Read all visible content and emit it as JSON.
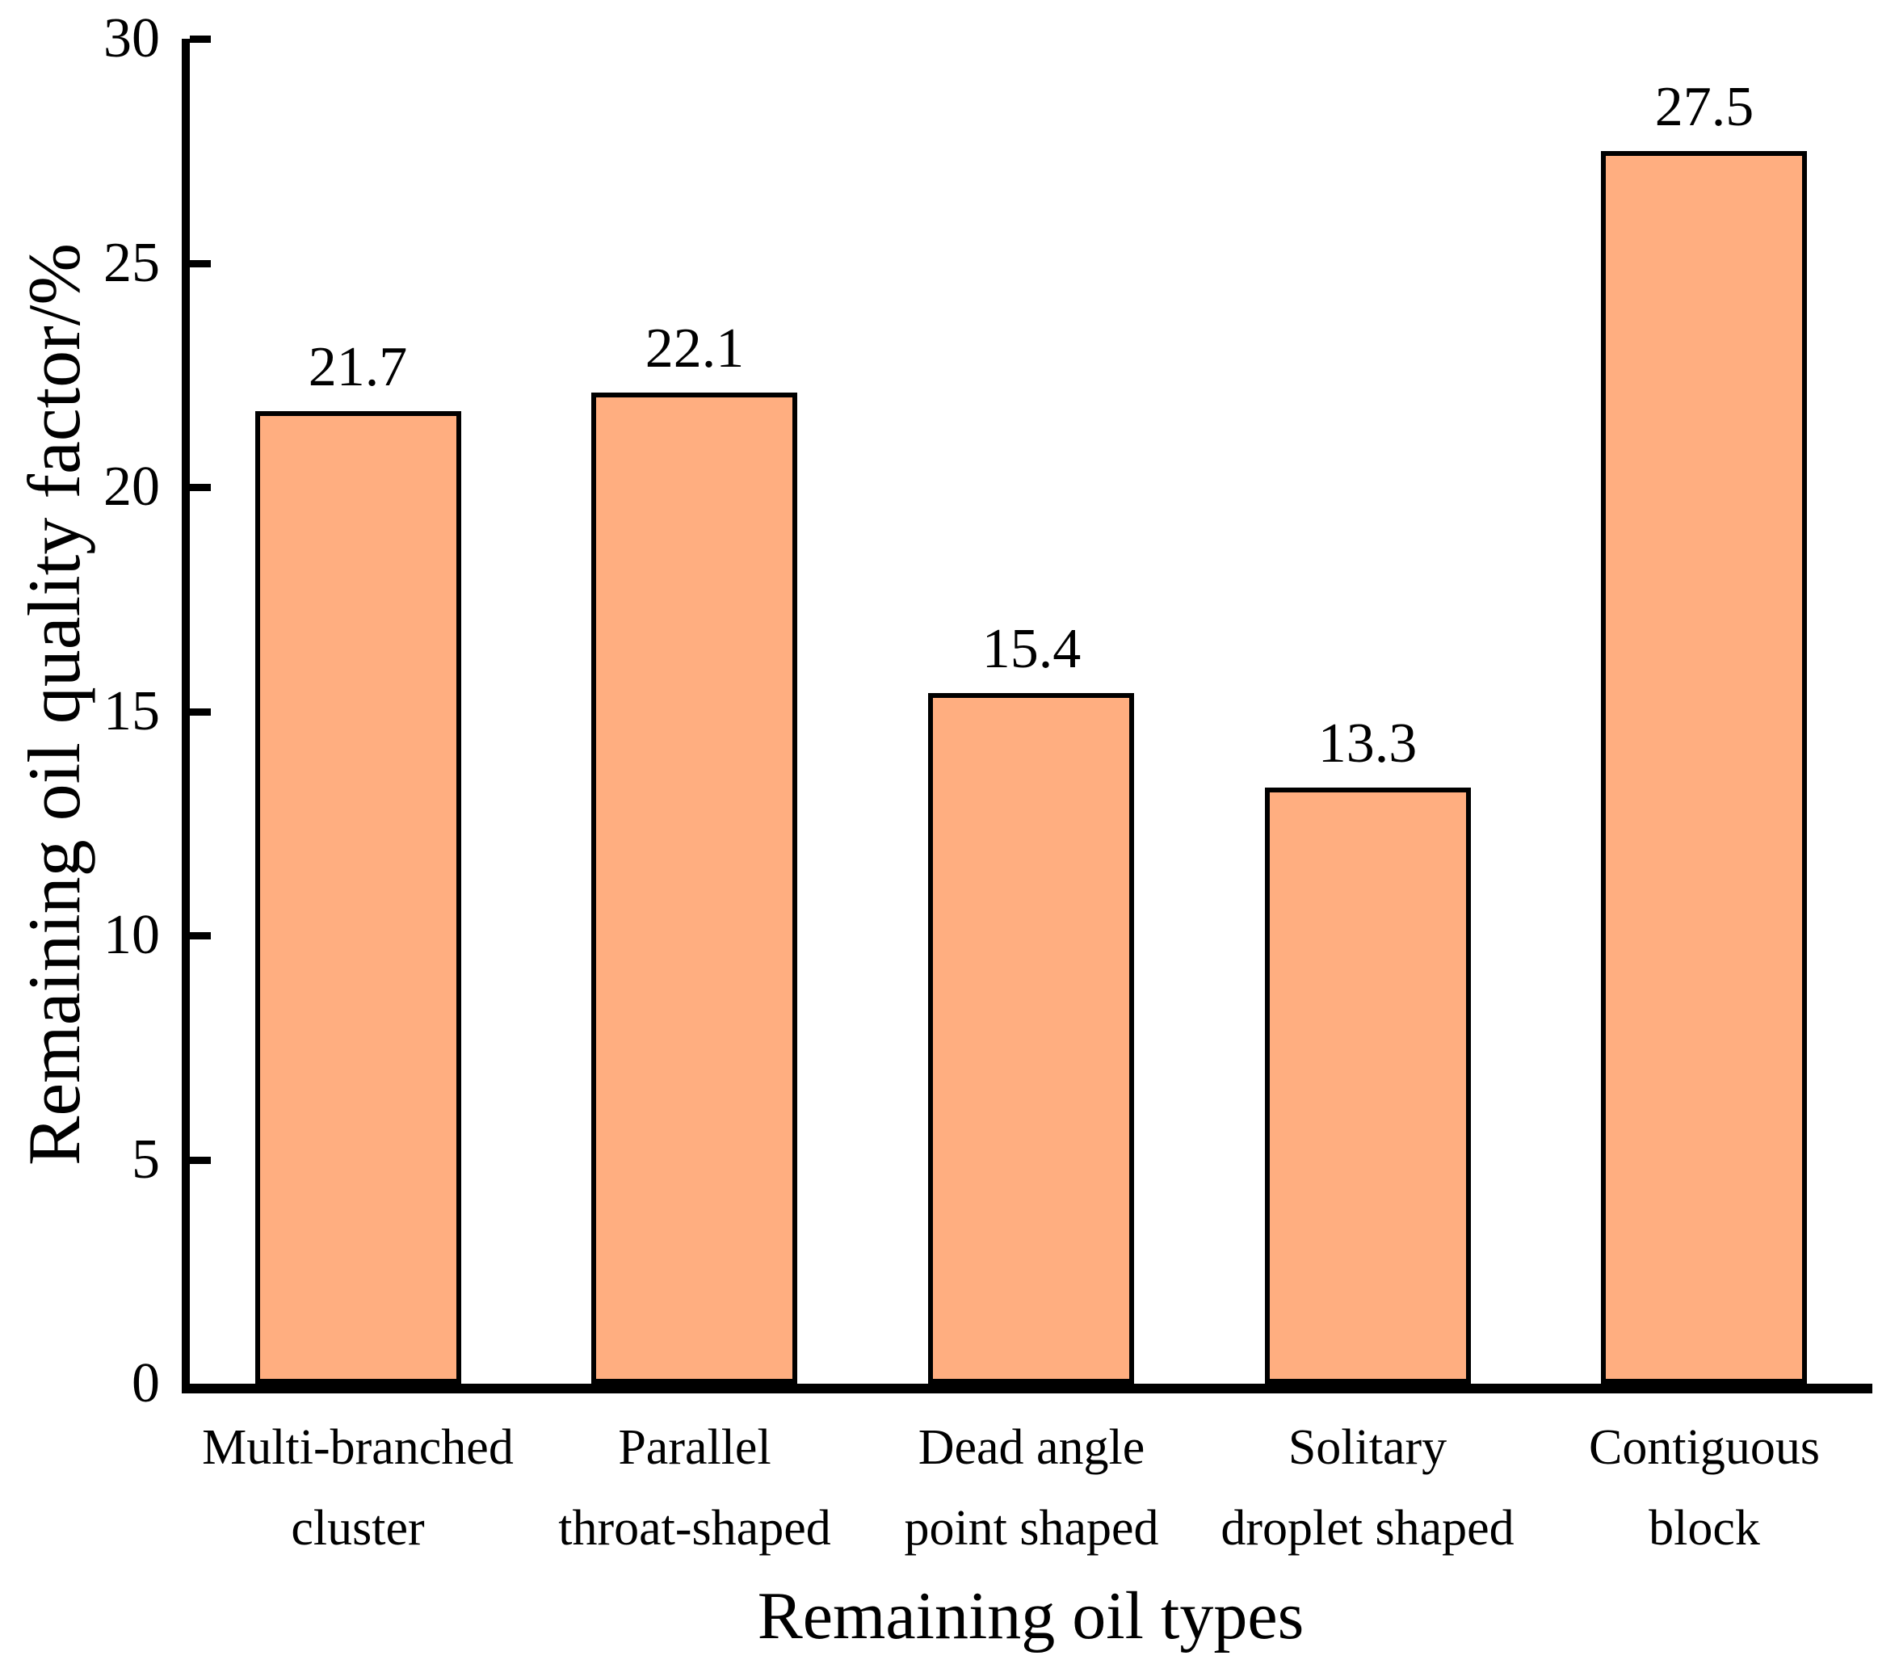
{
  "chart_data": {
    "type": "bar",
    "title": "",
    "xlabel": "Remaining oil types",
    "ylabel": "Remaining oil quality factor/%",
    "categories": [
      "Multi-branched\ncluster",
      "Parallel\nthroat-shaped",
      "Dead angle\npoint shaped",
      "Solitary\ndroplet shaped",
      "Contiguous\nblock"
    ],
    "values": [
      21.7,
      22.1,
      15.4,
      13.3,
      27.5
    ],
    "value_labels": [
      "21.7",
      "22.1",
      "15.4",
      "13.3",
      "27.5"
    ],
    "ylim": [
      0,
      30
    ],
    "yticks": [
      0,
      5,
      10,
      15,
      20,
      25,
      30
    ],
    "grid": false,
    "legend": null,
    "bar_color": "#FFAE80",
    "bar_edge_color": "#000000",
    "axis_color": "#000000",
    "text_color": "#000000",
    "background_color": "#FFFFFF"
  }
}
